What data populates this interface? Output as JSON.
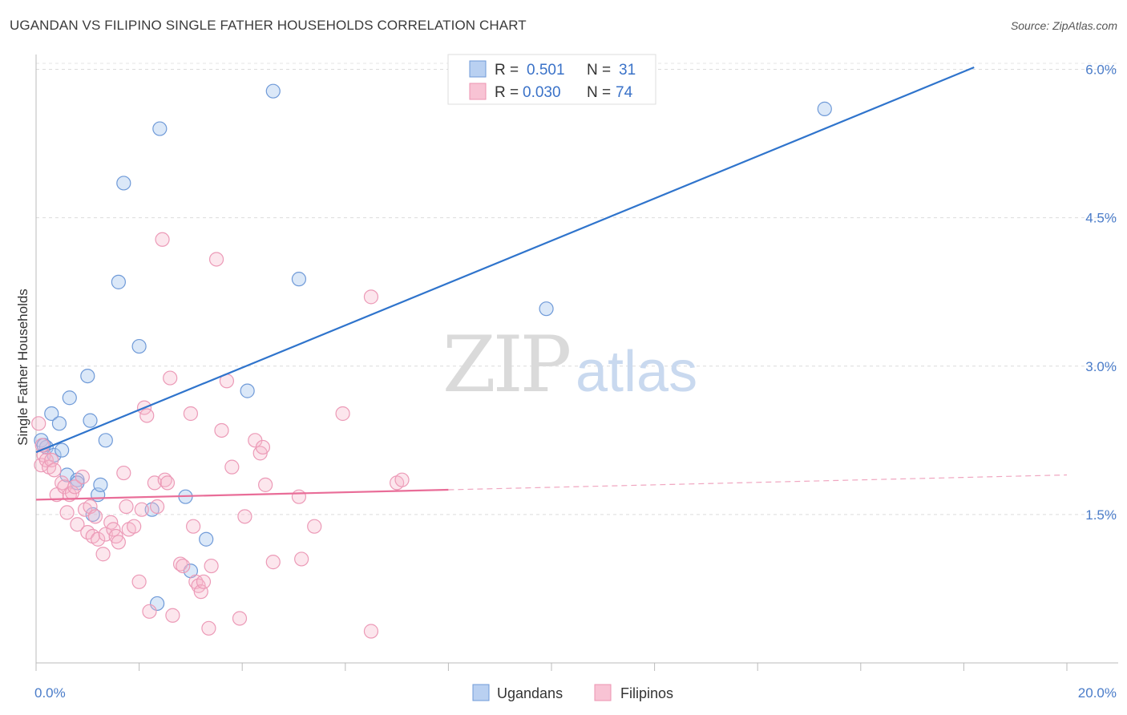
{
  "title": "UGANDAN VS FILIPINO SINGLE FATHER HOUSEHOLDS CORRELATION CHART",
  "source": "Source: ZipAtlas.com",
  "watermark": {
    "zip": "ZIP",
    "atlas": "atlas"
  },
  "legend": {
    "r_label": "R =",
    "n_label": "N =",
    "rows": [
      {
        "r": "0.501",
        "n": "31"
      },
      {
        "r": "0.030",
        "n": "74"
      }
    ]
  },
  "chart_data": {
    "type": "scatter",
    "title": "UGANDAN VS FILIPINO SINGLE FATHER HOUSEHOLDS CORRELATION CHART",
    "xlabel": "",
    "ylabel": "Single Father Households",
    "xlim": [
      0,
      20
    ],
    "ylim": [
      0,
      6.15
    ],
    "x_tick_labels": [
      "0.0%",
      "20.0%"
    ],
    "y_ticks": [
      1.5,
      3.0,
      4.5,
      6.0
    ],
    "y_tick_labels": [
      "1.5%",
      "3.0%",
      "4.5%",
      "6.0%"
    ],
    "colors": {
      "ugandans": "#5b8fd6",
      "filipinos": "#ee8fb0",
      "ugandan_line": "#2f74cc",
      "filipino_line": "#e96d98"
    },
    "series": [
      {
        "name": "Ugandans",
        "r": 0.501,
        "n": 31,
        "trend": {
          "x0": 0,
          "y0": 2.13,
          "x1": 18.2,
          "y1": 6.02
        },
        "points": [
          [
            0.1,
            2.25
          ],
          [
            0.2,
            2.18
          ],
          [
            0.15,
            2.2
          ],
          [
            0.3,
            2.52
          ],
          [
            0.35,
            2.1
          ],
          [
            0.45,
            2.42
          ],
          [
            0.5,
            2.15
          ],
          [
            0.6,
            1.9
          ],
          [
            0.65,
            2.68
          ],
          [
            0.8,
            1.85
          ],
          [
            0.8,
            1.82
          ],
          [
            1.0,
            2.9
          ],
          [
            1.05,
            2.45
          ],
          [
            1.1,
            1.5
          ],
          [
            1.2,
            1.7
          ],
          [
            1.25,
            1.8
          ],
          [
            1.35,
            2.25
          ],
          [
            1.6,
            3.85
          ],
          [
            1.7,
            4.85
          ],
          [
            2.0,
            3.2
          ],
          [
            2.25,
            1.55
          ],
          [
            2.35,
            0.6
          ],
          [
            2.4,
            5.4
          ],
          [
            2.9,
            1.68
          ],
          [
            3.0,
            0.93
          ],
          [
            3.3,
            1.25
          ],
          [
            4.1,
            2.75
          ],
          [
            4.6,
            5.78
          ],
          [
            5.1,
            3.88
          ],
          [
            9.9,
            3.58
          ],
          [
            15.3,
            5.6
          ]
        ]
      },
      {
        "name": "Filipinos",
        "r": 0.03,
        "n": 74,
        "trend": {
          "x0": 0,
          "y0": 1.65,
          "x1": 8.0,
          "y1": 1.75
        },
        "trend_dashed": {
          "x0": 8.0,
          "y0": 1.75,
          "x1": 20.0,
          "y1": 1.9
        },
        "points": [
          [
            0.05,
            2.42
          ],
          [
            0.1,
            2.0
          ],
          [
            0.15,
            2.1
          ],
          [
            0.2,
            2.05
          ],
          [
            0.25,
            1.98
          ],
          [
            0.3,
            2.05
          ],
          [
            0.35,
            1.95
          ],
          [
            0.4,
            1.7
          ],
          [
            0.5,
            1.82
          ],
          [
            0.55,
            1.78
          ],
          [
            0.6,
            1.52
          ],
          [
            0.65,
            1.7
          ],
          [
            0.7,
            1.72
          ],
          [
            0.75,
            1.78
          ],
          [
            0.8,
            1.4
          ],
          [
            0.9,
            1.88
          ],
          [
            0.95,
            1.55
          ],
          [
            1.0,
            1.32
          ],
          [
            1.05,
            1.58
          ],
          [
            1.1,
            1.28
          ],
          [
            1.15,
            1.48
          ],
          [
            1.2,
            1.25
          ],
          [
            1.3,
            1.1
          ],
          [
            1.35,
            1.3
          ],
          [
            1.45,
            1.42
          ],
          [
            1.5,
            1.35
          ],
          [
            1.55,
            1.28
          ],
          [
            1.6,
            1.22
          ],
          [
            1.7,
            1.92
          ],
          [
            1.75,
            1.58
          ],
          [
            1.8,
            1.35
          ],
          [
            1.9,
            1.38
          ],
          [
            2.0,
            0.82
          ],
          [
            2.05,
            1.55
          ],
          [
            2.1,
            2.58
          ],
          [
            2.15,
            2.5
          ],
          [
            2.2,
            0.52
          ],
          [
            2.3,
            1.82
          ],
          [
            2.35,
            1.58
          ],
          [
            2.45,
            4.28
          ],
          [
            2.5,
            1.85
          ],
          [
            2.55,
            1.82
          ],
          [
            2.6,
            2.88
          ],
          [
            2.65,
            0.48
          ],
          [
            2.8,
            1.0
          ],
          [
            2.85,
            0.98
          ],
          [
            3.0,
            2.52
          ],
          [
            3.05,
            1.38
          ],
          [
            3.1,
            0.82
          ],
          [
            3.15,
            0.78
          ],
          [
            3.2,
            0.72
          ],
          [
            3.25,
            0.82
          ],
          [
            3.35,
            0.35
          ],
          [
            3.4,
            0.98
          ],
          [
            3.5,
            4.08
          ],
          [
            3.6,
            2.35
          ],
          [
            3.7,
            2.85
          ],
          [
            3.8,
            1.98
          ],
          [
            3.95,
            0.45
          ],
          [
            4.05,
            1.48
          ],
          [
            4.25,
            2.25
          ],
          [
            4.35,
            2.12
          ],
          [
            4.4,
            2.18
          ],
          [
            4.45,
            1.8
          ],
          [
            4.6,
            1.02
          ],
          [
            5.1,
            1.68
          ],
          [
            5.15,
            1.05
          ],
          [
            5.4,
            1.38
          ],
          [
            5.95,
            2.52
          ],
          [
            6.5,
            0.32
          ],
          [
            6.5,
            3.7
          ],
          [
            7.0,
            1.82
          ],
          [
            7.1,
            1.85
          ],
          [
            0.12,
            2.2
          ]
        ]
      }
    ]
  },
  "bottom_legend": [
    "Ugandans",
    "Filipinos"
  ]
}
